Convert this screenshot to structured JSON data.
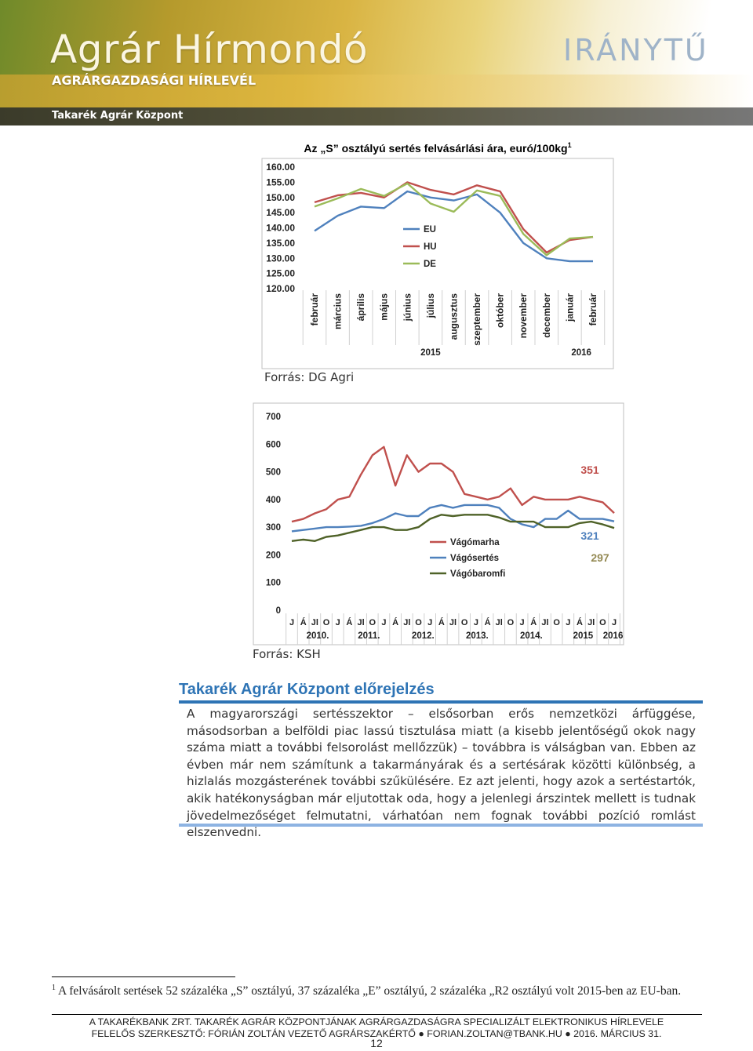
{
  "header": {
    "title": "Agrár Hírmondó",
    "subtitle": "AGRÁRGAZDASÁGI HÍRLEVÉL",
    "org": "Takarék Agrár Központ",
    "brand": "IRÁNYTŰ"
  },
  "chart_data": [
    {
      "type": "line",
      "title": "Az „S” osztályú sertés felvásárlási ára, euró/100kg",
      "title_sup": "1",
      "categories": [
        "február",
        "március",
        "április",
        "május",
        "június",
        "július",
        "augusztus",
        "szeptember",
        "október",
        "november",
        "december",
        "január",
        "február"
      ],
      "group_labels": [
        "2015",
        "2016"
      ],
      "series": [
        {
          "name": "EU",
          "color": "#4f81bd",
          "values": [
            139,
            144,
            147,
            146.5,
            152,
            150,
            149,
            151,
            145,
            135,
            130,
            129,
            129
          ]
        },
        {
          "name": "HU",
          "color": "#c0504d",
          "values": [
            148.4,
            150.7,
            151.5,
            150,
            155,
            152.5,
            151,
            154,
            152,
            139.6,
            131.9,
            136,
            137
          ]
        },
        {
          "name": "DE",
          "color": "#9bbb59",
          "values": [
            147,
            149.7,
            152.8,
            150.5,
            154.6,
            148,
            145.3,
            152.3,
            150.5,
            138,
            131,
            136.5,
            137
          ]
        }
      ],
      "ylim": [
        120,
        160
      ],
      "yticks": [
        {
          "value": 120,
          "label": "120.00"
        },
        {
          "value": 125,
          "label": "125.00"
        },
        {
          "value": 130,
          "label": "130.00"
        },
        {
          "value": 135,
          "label": "135.00"
        },
        {
          "value": 140,
          "label": "140.00"
        },
        {
          "value": 145,
          "label": "145.00"
        },
        {
          "value": 150,
          "label": "150.00"
        },
        {
          "value": 155,
          "label": "155.00"
        },
        {
          "value": 160,
          "label": "160.00"
        }
      ],
      "source": "Forrás: DG Agri"
    },
    {
      "type": "line",
      "categories": [
        "J",
        "Á",
        "Jl",
        "O",
        "J",
        "Á",
        "Jl",
        "O",
        "J",
        "Á",
        "Jl",
        "O",
        "J",
        "Á",
        "Jl",
        "O",
        "J",
        "Á",
        "Jl",
        "O",
        "J",
        "Á",
        "Jl",
        "O",
        "J",
        "Á",
        "Jl",
        "O",
        "J"
      ],
      "group_labels": [
        "2010.",
        "2011.",
        "2012.",
        "2013.",
        "2014.",
        "2015",
        "2016"
      ],
      "series": [
        {
          "name": "Vágómarha",
          "color": "#c0504d",
          "values": [
            320,
            330,
            350,
            365,
            400,
            410,
            490,
            560,
            590,
            450,
            560,
            500,
            530,
            530,
            500,
            420,
            410,
            400,
            410,
            440,
            380,
            410,
            400,
            400,
            400,
            410,
            400,
            390,
            351
          ]
        },
        {
          "name": "Vágósertés",
          "color": "#4f81bd",
          "values": [
            285,
            290,
            295,
            300,
            300,
            302,
            305,
            315,
            330,
            350,
            340,
            340,
            370,
            380,
            370,
            380,
            380,
            380,
            370,
            330,
            310,
            300,
            330,
            330,
            360,
            330,
            330,
            330,
            321
          ]
        },
        {
          "name": "Vágóbaromfi",
          "color": "#4f6228",
          "values": [
            250,
            255,
            250,
            265,
            270,
            280,
            290,
            300,
            300,
            290,
            290,
            300,
            330,
            345,
            340,
            345,
            345,
            345,
            335,
            320,
            320,
            320,
            300,
            300,
            300,
            315,
            320,
            310,
            297
          ]
        }
      ],
      "annotations": [
        {
          "text": "351",
          "color": "#c0504d"
        },
        {
          "text": "321",
          "color": "#4f81bd"
        },
        {
          "text": "297",
          "color": "#948a54"
        }
      ],
      "ylim": [
        0,
        700
      ],
      "yticks": [
        0,
        100,
        200,
        300,
        400,
        500,
        600,
        700
      ],
      "source": "Forrás: KSH"
    }
  ],
  "section": {
    "title": "Takarék Agrár Központ előrejelzés",
    "text": "A magyarországi sertésszektor – elsősorban erős nemzetközi árfüggése, másodsorban a belföldi piac lassú tisztulása miatt (a kisebb jelentőségű okok nagy száma miatt a további felsorolást mellőzzük) – továbbra is válságban van. Ebben az évben már nem számítunk a takarmányárak és a sertésárak közötti különbség, a hizlalás mozgásterének további szűkülésére. Ez azt jelenti, hogy azok a sertéstartók, akik hatékonyságban már eljutottak oda, hogy a jelenlegi árszintek mellett is tudnak jövedelmezőséget felmutatni, várhatóan nem fognak további pozíció romlást elszenvedni."
  },
  "footnote": {
    "mark": "1",
    "text": "A felvásárolt sertések 52 százaléka „S” osztályú, 37 százaléka „E” osztályú, 2 százaléka „R2 osztályú volt 2015-ben az EU-ban."
  },
  "footer": {
    "lines": [
      "A TAKARÉKBANK ZRT. TAKARÉK AGRÁR KÖZPONTJÁNAK AGRÁRGAZDASÁGRA SPECIALIZÁLT ELEKTRONIKUS HÍRLEVELE",
      "FELELŐS SZERKESZTŐ: FÓRIÁN ZOLTÁN VEZETŐ AGRÁRSZAKÉRTŐ ● FORIAN.ZOLTAN@TBANK.HU ● 2016. MÁRCIUS 31."
    ],
    "page": "12"
  }
}
